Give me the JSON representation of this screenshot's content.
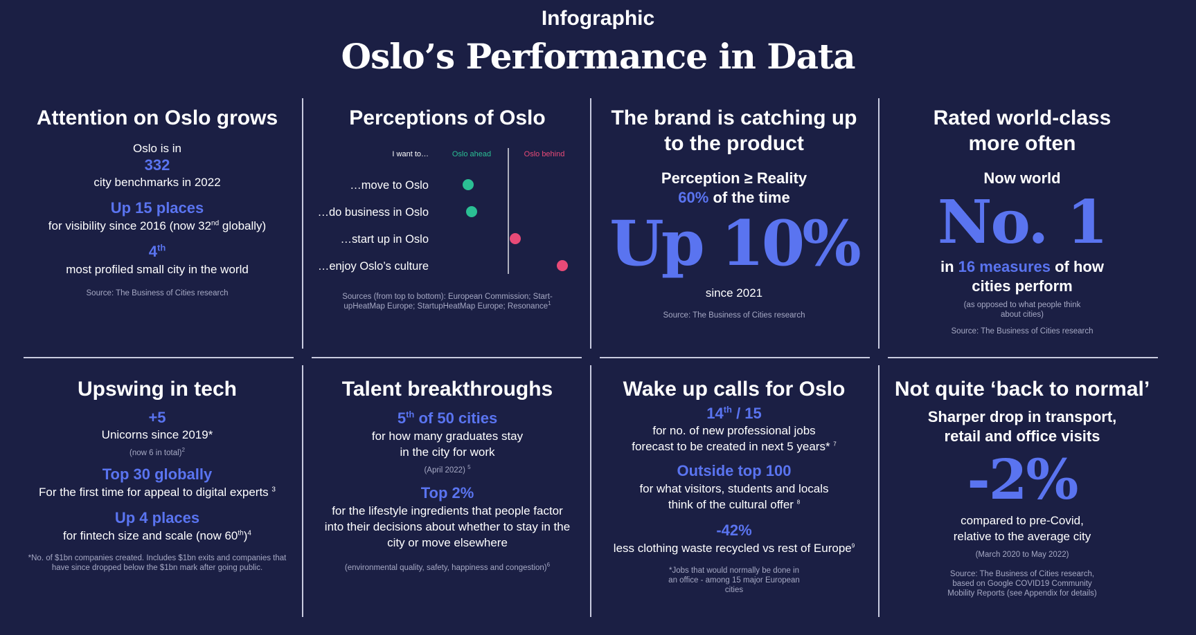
{
  "header": {
    "kicker": "Infographic",
    "title": "Oslo’s Performance in Data"
  },
  "colors": {
    "background": "#1b1f44",
    "accent": "#5a74f0",
    "ahead": "#2bbf94",
    "behind": "#e84a77",
    "text": "#ffffff",
    "muted": "#a6a9c4"
  },
  "attention": {
    "title": "Attention on Oslo grows",
    "line1": "Oslo is in",
    "num": "332",
    "line2": "city benchmarks in 2022",
    "up": "Up 15 places",
    "vis_a": "for visibility since 2016 (now 32",
    "vis_sup": "nd",
    "vis_b": " globally)",
    "fourth": "4",
    "fourth_sup": "th",
    "profiled": "most profiled small city in the world",
    "source": "Source: The Business of Cities research"
  },
  "perceptions": {
    "title": "Perceptions of Oslo",
    "col_label": "I want to…",
    "ahead_label": "Oslo ahead",
    "behind_label": "Oslo behind",
    "items": [
      {
        "label": "…move to Oslo",
        "status": "ahead"
      },
      {
        "label": "…do business in Oslo",
        "status": "ahead"
      },
      {
        "label": "…start up in Oslo",
        "status": "behind"
      },
      {
        "label": "…enjoy Oslo’s culture",
        "status": "behind"
      }
    ],
    "source": "Sources (from top to bottom): European Commission; Start-upHeatMap Europe; StartupHeatMap Europe; Resonance",
    "source_sup": "1"
  },
  "brand": {
    "title": "The brand is catching up to the product",
    "sub1": "Perception ≥ Reality",
    "pct": "60%",
    "sub2": " of the time",
    "big": "Up 10%",
    "since": "since 2021",
    "source": "Source: The Business of Cities research"
  },
  "rated": {
    "title": "Rated world-class more often",
    "now": "Now world",
    "big": "No. 1",
    "in": "in ",
    "measures": "16 measures",
    "rest": " of how cities perform",
    "note": "(as opposed to what people think about cities)",
    "source": "Source: The Business of Cities research"
  },
  "tech": {
    "title": "Upswing in tech",
    "plus": "+5",
    "unicorns": "Unicorns since 2019*",
    "total": "(now 6 in total)",
    "total_sup": "2",
    "top30": "Top 30 globally",
    "first": "For the first time for appeal to digital experts ",
    "first_sup": "3",
    "up4": "Up 4 places",
    "fintech_a": "for fintech size and scale (now 60",
    "fintech_sup": "th",
    "fintech_b": ")",
    "fintech_sup2": "4",
    "footnote": "*No. of $1bn companies created. Includes $1bn exits and companies that have since dropped below the $1bn mark after going public."
  },
  "talent": {
    "title": "Talent breakthroughs",
    "fifth": "5",
    "fifth_sup": "th",
    "fifth_rest": " of 50 cities",
    "grads": "for how many graduates stay in the city for work",
    "april": "(April 2022) ",
    "april_sup": "5",
    "top2": "Top 2%",
    "lifestyle": "for the lifestyle ingredients that people factor into their decisions about whether to stay in the city or move elsewhere",
    "env": "(environmental quality, safety, happiness and congestion)",
    "env_sup": "6"
  },
  "wake": {
    "title": "Wake up calls for Oslo",
    "rank": "14",
    "rank_sup": "th",
    "rank_rest": " / 15",
    "jobs": "for no. of new professional jobs forecast to be created  in next 5 years* ",
    "jobs_sup": "7",
    "outside": "Outside top 100",
    "visitors": "for what visitors, students and locals think of the cultural offer ",
    "visitors_sup": "8",
    "neg": "-42%",
    "clothing": "less clothing waste recycled vs rest of Europe",
    "clothing_sup": "9",
    "footnote": "*Jobs that would normally be done in an office - among 15 major European cities"
  },
  "normal": {
    "title": "Not quite ‘back to normal’",
    "sub": "Sharper drop in transport, retail and office visits",
    "big": "-2%",
    "compared": "compared to pre-Covid, relative to the average city",
    "dates": "(March 2020 to May 2022)",
    "source": "Source: The Business of Cities research, based on Google COVID19 Community Mobility Reports (see Appendix for details)"
  }
}
